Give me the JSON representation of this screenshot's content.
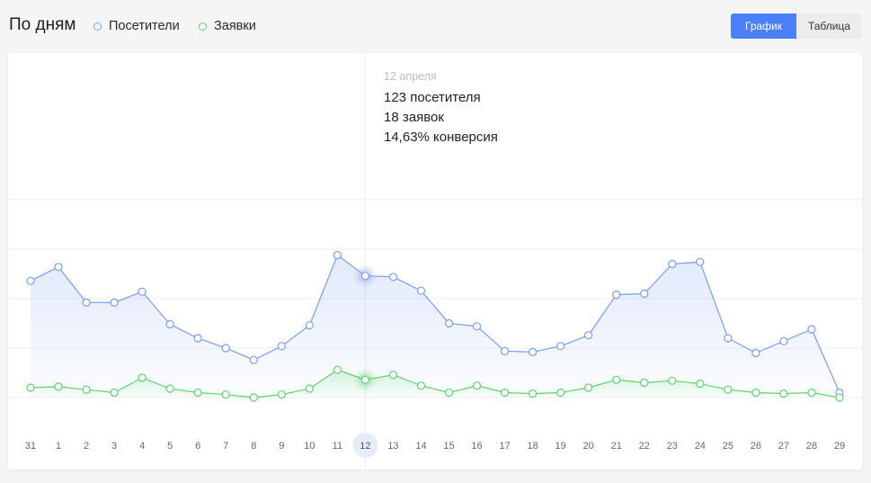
{
  "header": {
    "title": "По дням",
    "legend": [
      {
        "label": "Посетители",
        "color": "#7a9cf0"
      },
      {
        "label": "Заявки",
        "color": "#5dd36e"
      }
    ],
    "view_toggle": {
      "chart_label": "График",
      "table_label": "Таблица",
      "active": "График"
    }
  },
  "tooltip": {
    "date": "12 апреля",
    "visitors": "123 посетителя",
    "leads": "18 заявок",
    "conversion": "14,63% конверсия"
  },
  "chart_data": {
    "type": "line",
    "categories": [
      "31",
      "1",
      "2",
      "3",
      "4",
      "5",
      "6",
      "7",
      "8",
      "9",
      "10",
      "11",
      "12",
      "13",
      "14",
      "15",
      "16",
      "17",
      "18",
      "19",
      "20",
      "21",
      "22",
      "23",
      "24",
      "25",
      "26",
      "27",
      "28",
      "29"
    ],
    "highlight_category": "12",
    "ylim": [
      0,
      280
    ],
    "grid": true,
    "series": [
      {
        "name": "Посетители",
        "color": "#7a9cf0",
        "values": [
          118,
          132,
          96,
          96,
          107,
          74,
          60,
          50,
          38,
          52,
          73,
          144,
          123,
          122,
          108,
          75,
          72,
          47,
          46,
          52,
          63,
          104,
          105,
          135,
          137,
          60,
          45,
          57,
          69,
          5
        ]
      },
      {
        "name": "Заявки",
        "color": "#5dd36e",
        "values": [
          10,
          11,
          8,
          5,
          20,
          9,
          5,
          3,
          0,
          3,
          9,
          28,
          18,
          23,
          12,
          5,
          12,
          5,
          4,
          5,
          10,
          18,
          15,
          17,
          14,
          8,
          5,
          4,
          5,
          0
        ]
      }
    ]
  }
}
